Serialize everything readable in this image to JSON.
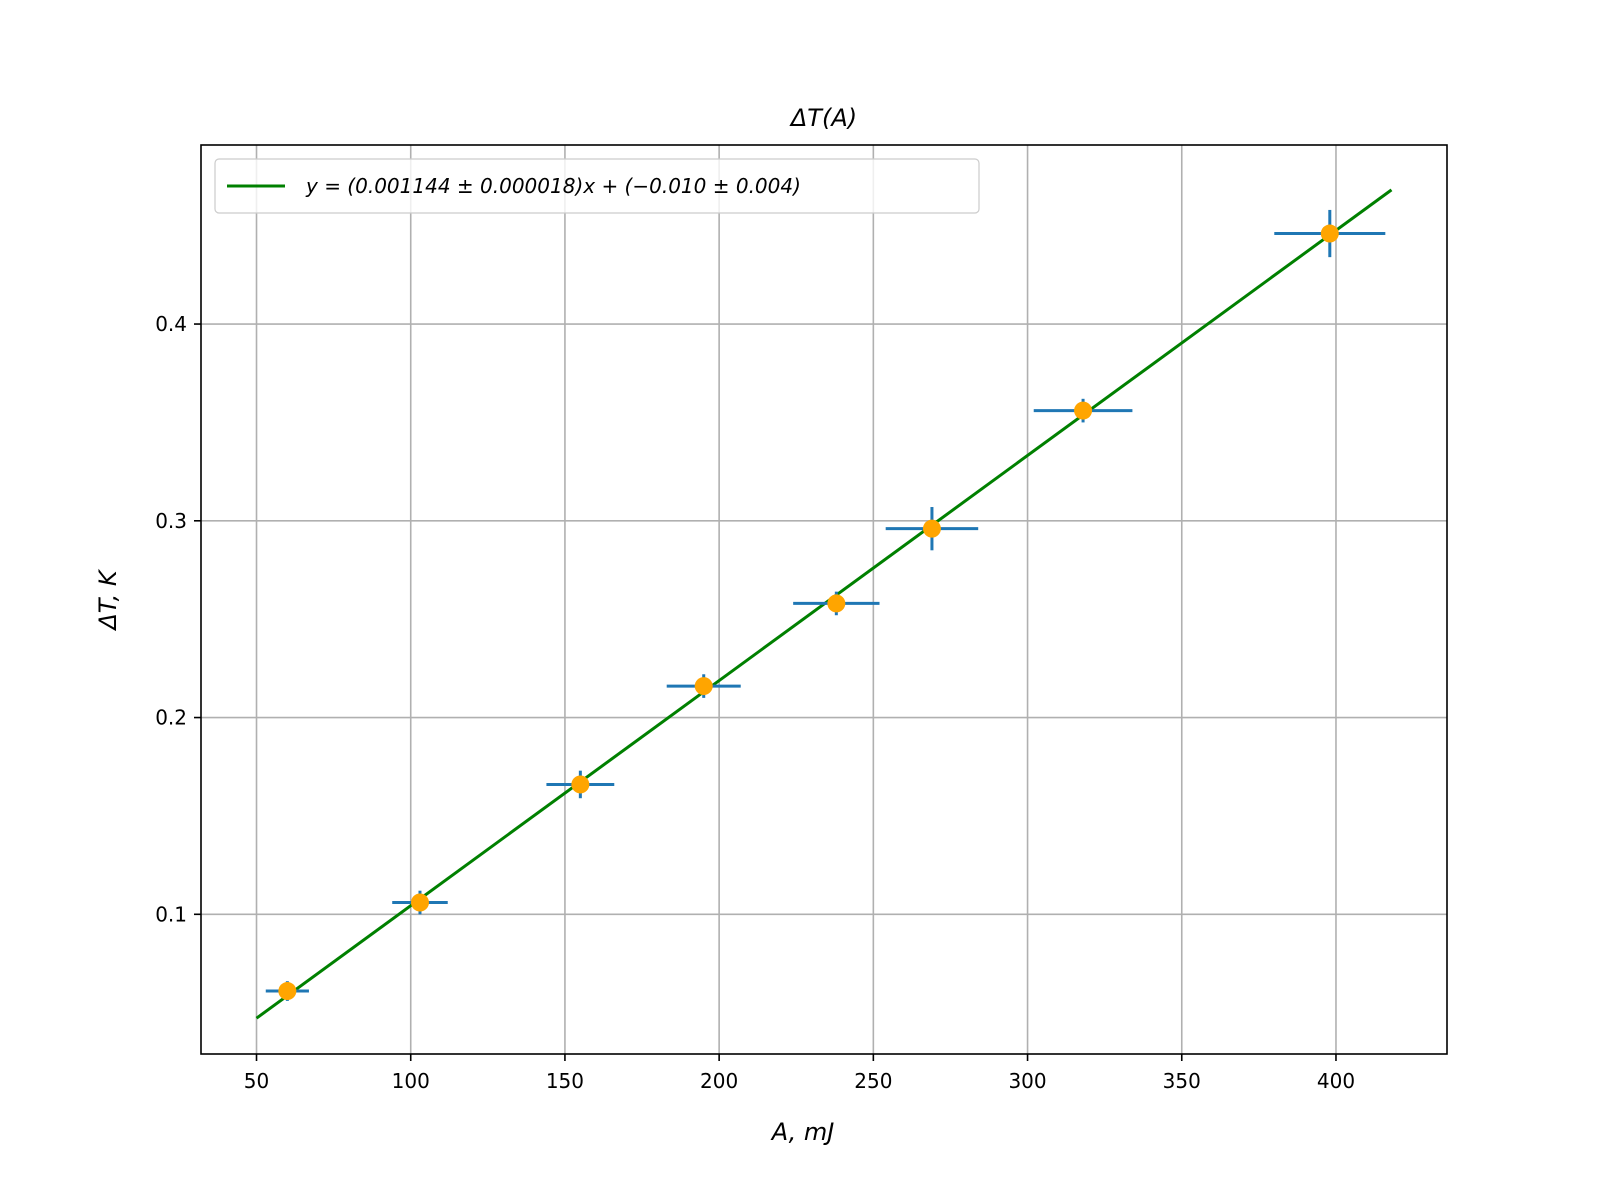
{
  "chart_data": {
    "type": "scatter",
    "title": "ΔT(A)",
    "xlabel": "A, mJ",
    "ylabel": "ΔT, K",
    "xlim": [
      32,
      436
    ],
    "ylim": [
      0.029,
      0.491
    ],
    "xticks": [
      50,
      100,
      150,
      200,
      250,
      300,
      350,
      400
    ],
    "yticks": [
      0.1,
      0.2,
      0.3,
      0.4
    ],
    "xtick_labels": [
      "50",
      "100",
      "150",
      "200",
      "250",
      "300",
      "350",
      "400"
    ],
    "ytick_labels": [
      "0.1",
      "0.2",
      "0.3",
      "0.4"
    ],
    "grid": true,
    "legend_placement": "top-left",
    "points": {
      "x": [
        60,
        103,
        155,
        195,
        238,
        269,
        318,
        398
      ],
      "y": [
        0.061,
        0.106,
        0.166,
        0.216,
        0.258,
        0.296,
        0.356,
        0.446
      ],
      "xerr": [
        7,
        9,
        11,
        12,
        14,
        15,
        16,
        18
      ],
      "yerr": [
        0.005,
        0.006,
        0.007,
        0.006,
        0.006,
        0.011,
        0.006,
        0.012
      ],
      "marker_color": "#ffa500",
      "errorbar_color": "#1f77b4"
    },
    "fit_line": {
      "label": "y = (0.001144 ± 0.000018)x + (−0.010 ± 0.004)",
      "slope": 0.001144,
      "intercept": -0.01,
      "x_range": [
        50,
        418
      ],
      "color": "#008000"
    }
  }
}
